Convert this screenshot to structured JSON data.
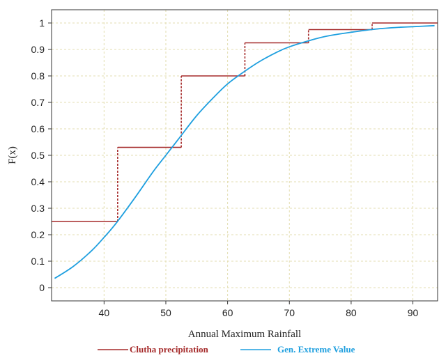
{
  "chart_data": {
    "type": "line",
    "title": "",
    "xlabel": "Annual Maximum Rainfall",
    "ylabel": "F(x)",
    "xlim": [
      31.5,
      94
    ],
    "ylim": [
      -0.05,
      1.05
    ],
    "x_ticks": [
      40,
      50,
      60,
      70,
      80,
      90
    ],
    "y_ticks": [
      0,
      0.1,
      0.2,
      0.3,
      0.4,
      0.5,
      0.6,
      0.7,
      0.8,
      0.9,
      1
    ],
    "y_tick_labels": [
      "0",
      "0.1",
      "0.2",
      "0.3",
      "0.4",
      "0.5",
      "0.6",
      "0.7",
      "0.8",
      "0.9",
      "1"
    ],
    "grid": true,
    "legend_position": "bottom",
    "series": [
      {
        "name": "Clutha precipitation",
        "kind": "step",
        "color": "#a52a2a",
        "x": [
          31.5,
          42.2,
          52.5,
          62.8,
          73.1,
          83.4,
          94
        ],
        "y": [
          0.25,
          0.53,
          0.8,
          0.925,
          0.975,
          1.0,
          1.0
        ]
      },
      {
        "name": "Gen. Extreme Value",
        "kind": "line",
        "color": "#1e9fdf",
        "x": [
          32,
          35,
          38,
          40,
          42,
          45,
          48,
          50,
          52,
          55,
          58,
          60,
          62,
          65,
          68,
          70,
          73,
          76,
          80,
          84,
          88,
          90,
          93.5
        ],
        "y": [
          0.035,
          0.08,
          0.14,
          0.19,
          0.245,
          0.34,
          0.44,
          0.5,
          0.56,
          0.65,
          0.725,
          0.77,
          0.805,
          0.852,
          0.89,
          0.91,
          0.932,
          0.95,
          0.965,
          0.977,
          0.984,
          0.986,
          0.99
        ]
      }
    ]
  }
}
